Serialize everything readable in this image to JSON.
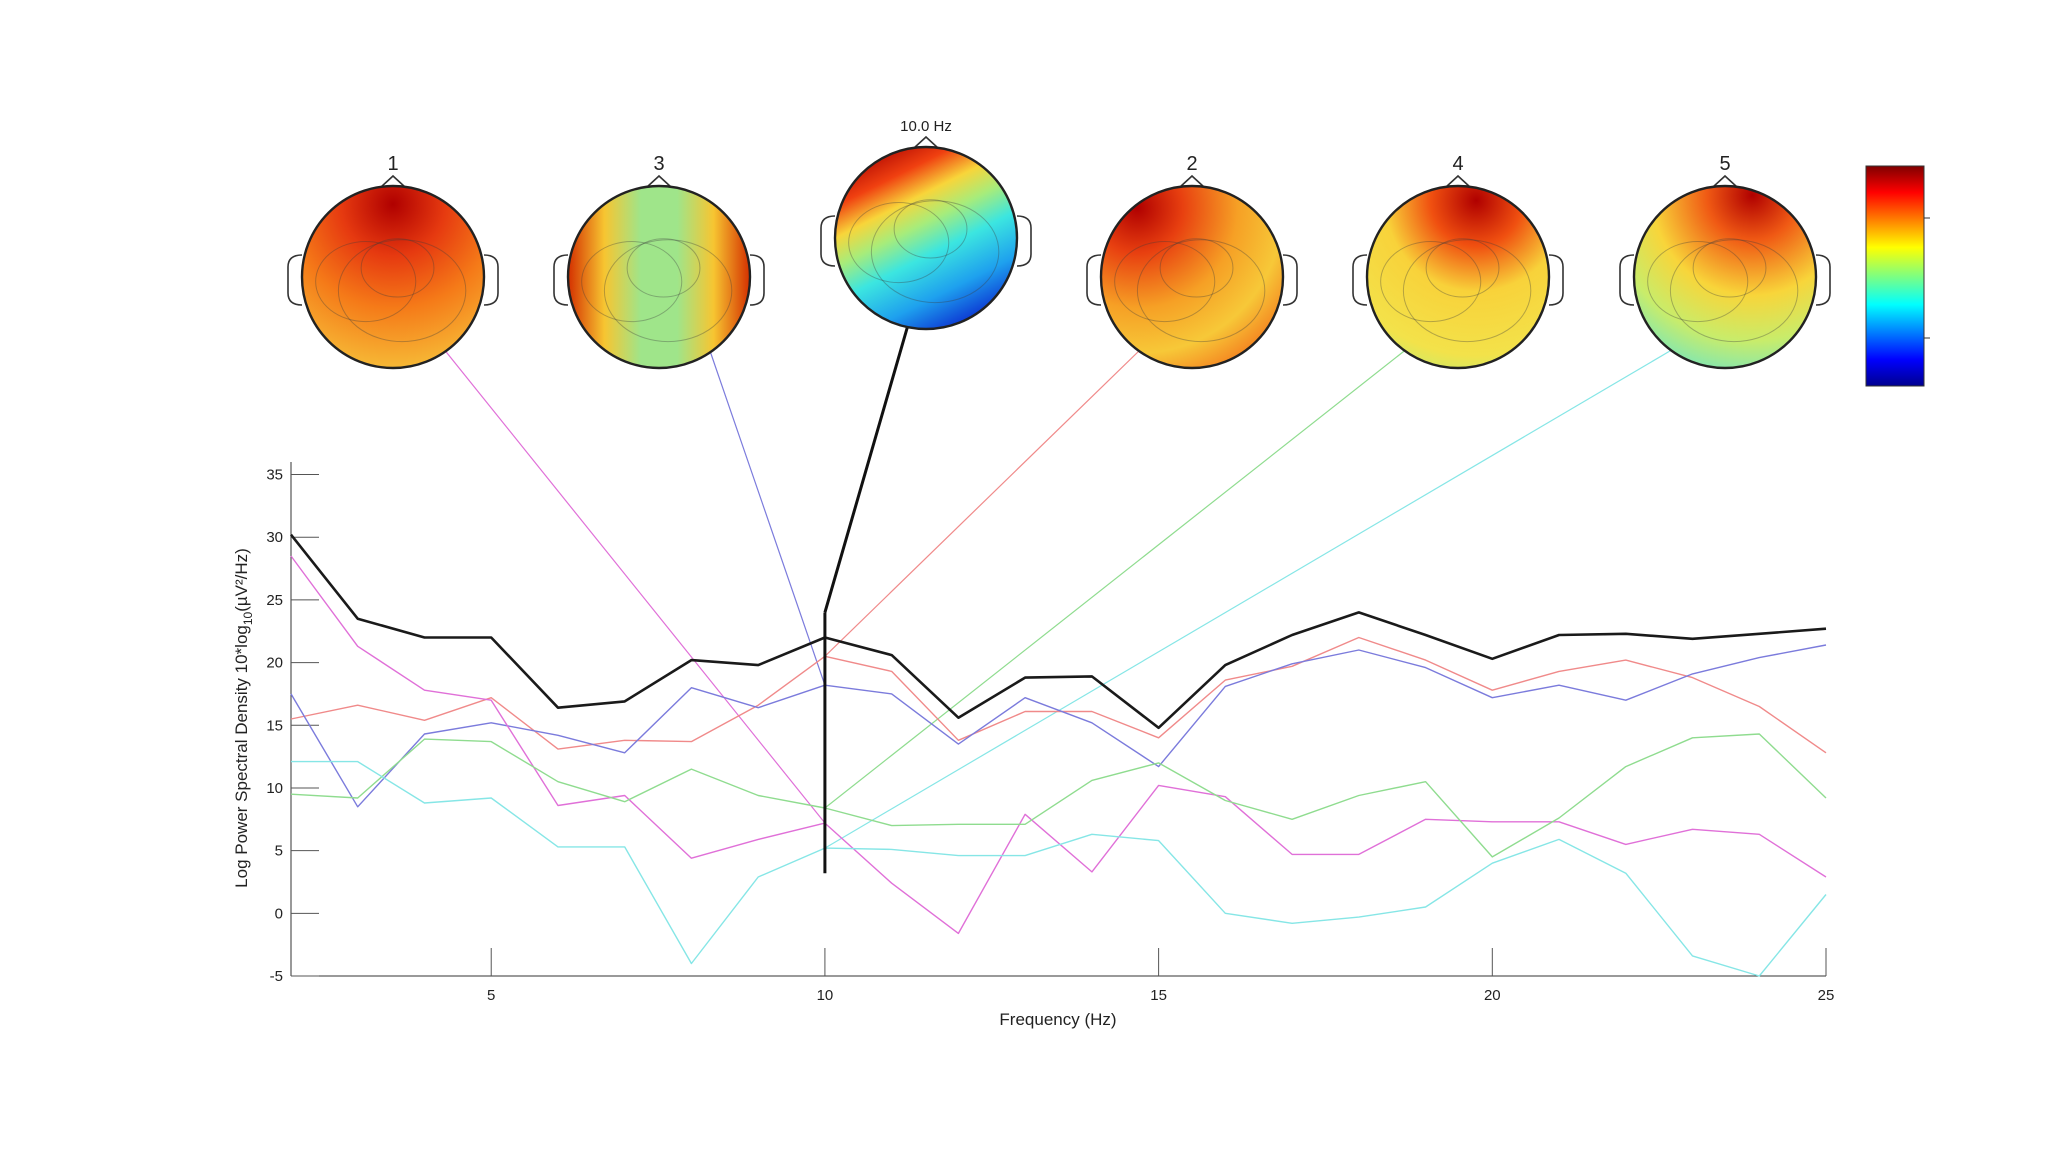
{
  "chart_data": {
    "type": "line",
    "title": "",
    "xlabel": "Frequency (Hz)",
    "ylabel_prefix": "Log Power Spectral Density 10*log",
    "ylabel_sub": "10",
    "ylabel_suffix": "(µV²/Hz)",
    "xlim": [
      2,
      25
    ],
    "ylim": [
      -5,
      36
    ],
    "xticks": [
      5,
      10,
      15,
      20,
      25
    ],
    "yticks": [
      -5,
      0,
      5,
      10,
      15,
      20,
      25,
      30,
      35
    ],
    "grid": false,
    "marker": {
      "freq": 10,
      "label": "10.0 Hz"
    },
    "x": [
      2,
      3,
      4,
      5,
      6,
      7,
      8,
      9,
      10,
      11,
      12,
      13,
      14,
      15,
      16,
      17,
      18,
      19,
      20,
      21,
      22,
      23,
      24,
      25
    ],
    "series": [
      {
        "id": "total",
        "color": "#1a1a1a",
        "width": 2.6,
        "values": [
          30.2,
          23.5,
          22.0,
          22.0,
          16.4,
          16.9,
          20.2,
          19.8,
          22.0,
          20.6,
          15.6,
          18.8,
          18.9,
          14.8,
          19.8,
          22.2,
          24.0,
          22.2,
          20.3,
          22.2,
          22.3,
          21.9,
          22.3,
          22.7
        ]
      },
      {
        "id": "comp-red",
        "color": "#f08a8a",
        "width": 1.4,
        "values": [
          15.5,
          16.6,
          15.4,
          17.2,
          13.1,
          13.8,
          13.7,
          16.6,
          20.5,
          19.3,
          13.8,
          16.1,
          16.1,
          14.0,
          18.6,
          19.7,
          22.0,
          20.2,
          17.8,
          19.3,
          20.2,
          18.8,
          16.5,
          12.8
        ]
      },
      {
        "id": "comp-blue",
        "color": "#7b7bdc",
        "width": 1.4,
        "values": [
          17.5,
          8.5,
          14.3,
          15.2,
          14.2,
          12.8,
          18.0,
          16.4,
          18.2,
          17.5,
          13.5,
          17.2,
          15.2,
          11.7,
          18.1,
          19.9,
          21.0,
          19.6,
          17.2,
          18.2,
          17.0,
          19.1,
          20.4,
          21.4
        ]
      },
      {
        "id": "comp-magenta",
        "color": "#e070d8",
        "width": 1.4,
        "values": [
          28.5,
          21.3,
          17.8,
          17.0,
          8.6,
          9.4,
          4.4,
          5.9,
          7.2,
          2.4,
          -1.6,
          7.9,
          3.3,
          10.2,
          9.3,
          4.7,
          4.7,
          7.5,
          7.3,
          7.3,
          5.5,
          6.7,
          6.3,
          2.9
        ]
      },
      {
        "id": "comp-green",
        "color": "#8fdc8f",
        "width": 1.4,
        "values": [
          9.5,
          9.2,
          13.9,
          13.7,
          10.5,
          8.9,
          11.5,
          9.4,
          8.4,
          7.0,
          7.1,
          7.1,
          10.6,
          12.0,
          9.0,
          7.5,
          9.4,
          10.5,
          4.5,
          7.6,
          11.7,
          14.0,
          14.3,
          9.2
        ]
      },
      {
        "id": "comp-cyan",
        "color": "#86e6e6",
        "width": 1.4,
        "values": [
          12.1,
          12.1,
          8.8,
          9.2,
          5.3,
          5.3,
          -4.0,
          2.9,
          5.2,
          5.1,
          4.6,
          4.6,
          6.3,
          5.8,
          0.0,
          -0.8,
          -0.3,
          0.5,
          4.0,
          5.9,
          3.2,
          -3.4,
          -5.0,
          1.5
        ]
      }
    ],
    "heads": [
      {
        "label": "1",
        "color": "#e070d8",
        "cx_hz": 2.95
      },
      {
        "label": "3",
        "color": "#7b7bdc",
        "cx_hz": 5.95
      },
      {
        "label": "",
        "color": "#111111",
        "cx_hz": 0,
        "is_main": true
      },
      {
        "label": "2",
        "color": "#f08a8a",
        "cx_hz": 0
      },
      {
        "label": "4",
        "color": "#8fdc8f",
        "cx_hz": 0
      },
      {
        "label": "5",
        "color": "#86e6e6",
        "cx_hz": 0
      }
    ]
  }
}
